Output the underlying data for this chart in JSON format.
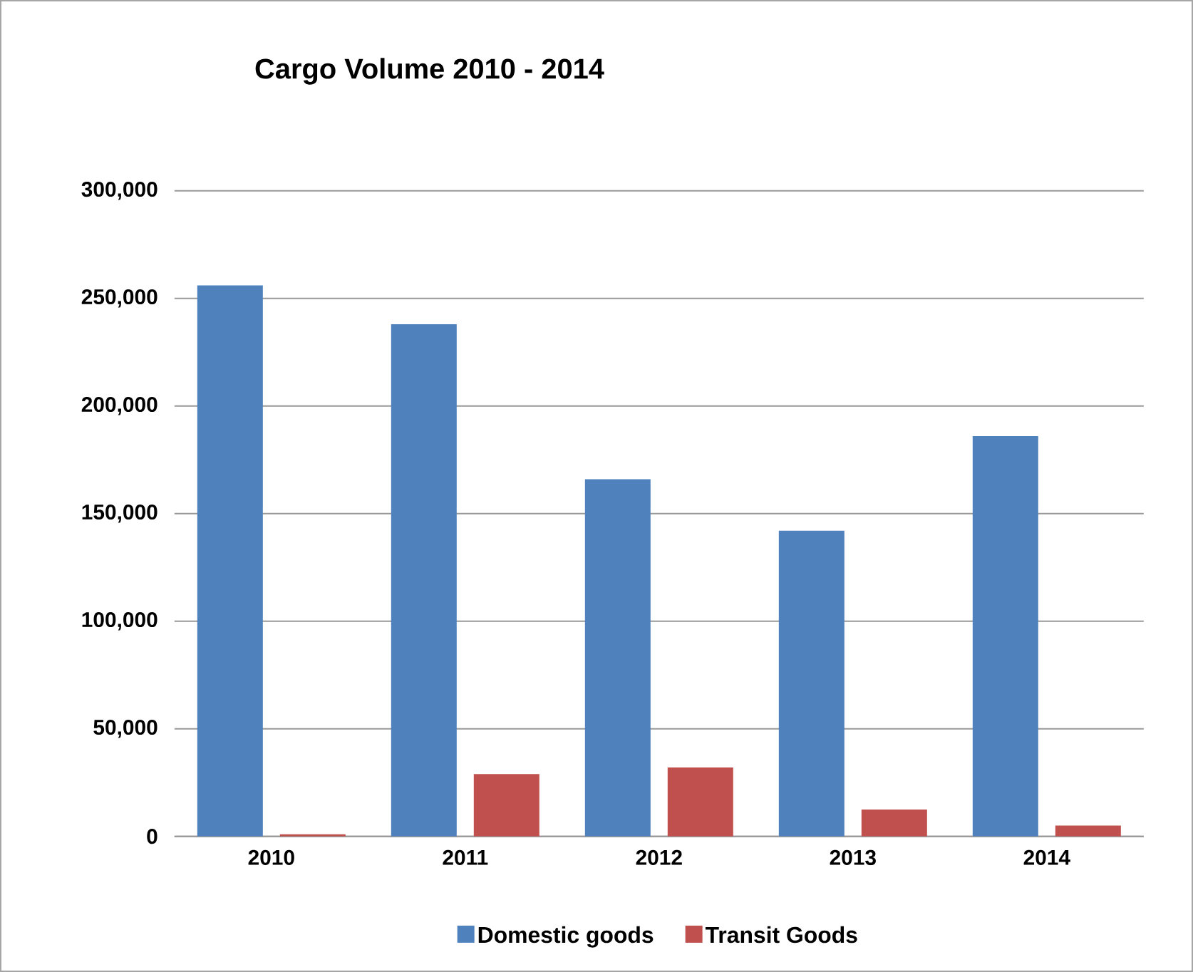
{
  "chart_data": {
    "type": "bar",
    "title": "Cargo Volume 2010 - 2014",
    "categories": [
      "2010",
      "2011",
      "2012",
      "2013",
      "2014"
    ],
    "series": [
      {
        "name": "Domestic goods",
        "color": "#4f81bd",
        "values": [
          256000,
          238000,
          166000,
          142000,
          186000
        ]
      },
      {
        "name": "Transit Goods",
        "color": "#c0504d",
        "values": [
          1000,
          29000,
          32000,
          12500,
          5000
        ]
      }
    ],
    "ylim": [
      0,
      300000
    ],
    "yticks": [
      {
        "value": 0,
        "label": "0"
      },
      {
        "value": 50000,
        "label": "50,000"
      },
      {
        "value": 100000,
        "label": "100,000"
      },
      {
        "value": 150000,
        "label": "150,000"
      },
      {
        "value": 200000,
        "label": "200,000"
      },
      {
        "value": 250000,
        "label": "250,000"
      },
      {
        "value": 300000,
        "label": "300,000"
      }
    ],
    "grid": "y",
    "legend": "bottom"
  }
}
